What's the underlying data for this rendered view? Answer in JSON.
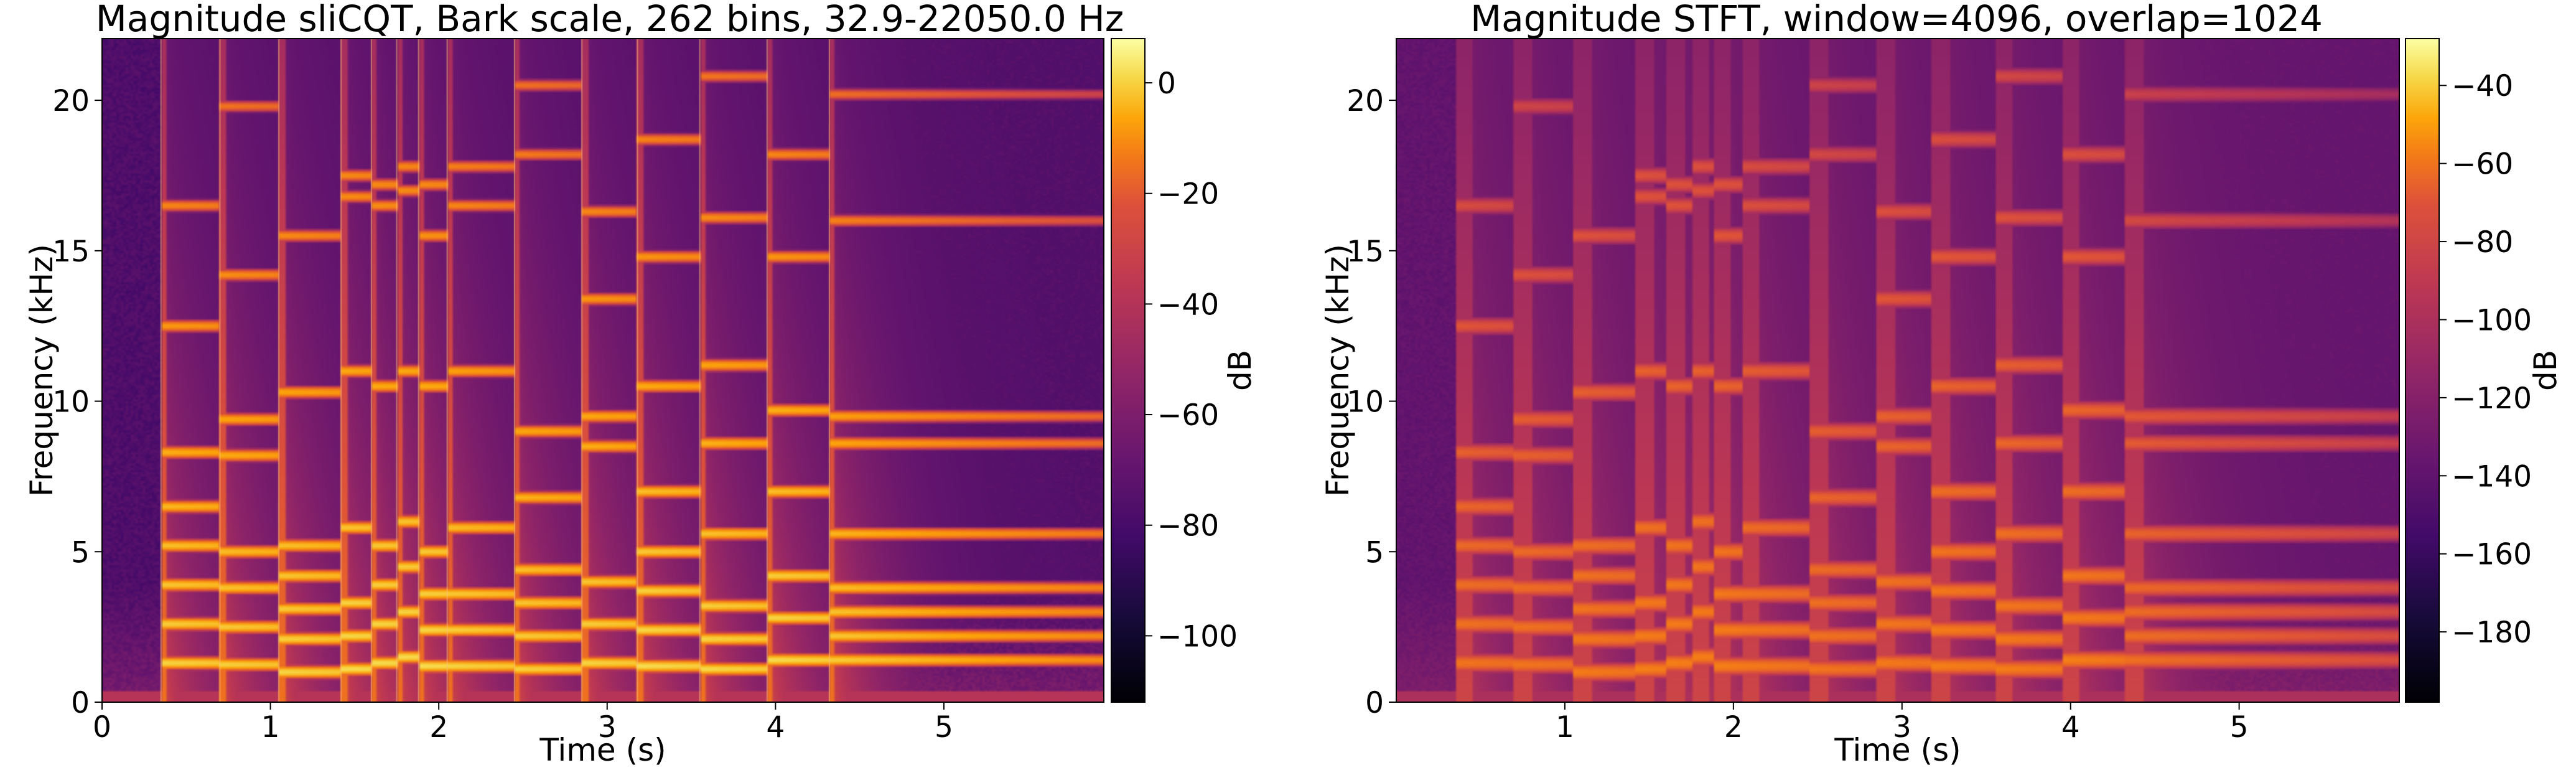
{
  "colormap": "inferno",
  "chart_data": [
    {
      "type": "heatmap",
      "title": "Magnitude sliCQT, Bark scale, 262 bins, 32.9-22050.0 Hz",
      "xlabel": "Time (s)",
      "ylabel": "Frequency (kHz)",
      "xlim": [
        0,
        5.95
      ],
      "ylim": [
        0,
        22.05
      ],
      "xticks": [
        {
          "value": 0,
          "label": "0"
        },
        {
          "value": 1,
          "label": "1"
        },
        {
          "value": 2,
          "label": "2"
        },
        {
          "value": 3,
          "label": "3"
        },
        {
          "value": 4,
          "label": "4"
        },
        {
          "value": 5,
          "label": "5"
        }
      ],
      "yticks": [
        {
          "value": 0,
          "label": "0"
        },
        {
          "value": 5,
          "label": "5"
        },
        {
          "value": 10,
          "label": "10"
        },
        {
          "value": 15,
          "label": "15"
        },
        {
          "value": 20,
          "label": "20"
        }
      ],
      "colorbar": {
        "label": "dB",
        "range": [
          -112,
          8
        ],
        "ticks": [
          {
            "value": 0,
            "label": "0"
          },
          {
            "value": -20,
            "label": "−20"
          },
          {
            "value": -40,
            "label": "−40"
          },
          {
            "value": -60,
            "label": "−60"
          },
          {
            "value": -80,
            "label": "−80"
          },
          {
            "value": -100,
            "label": "−100"
          }
        ]
      },
      "noise_floor_db": -84,
      "onset_segment_lines": true,
      "notes": [
        {
          "start": 0.35,
          "end": 0.7,
          "partials": [
            1.3,
            2.6,
            3.9,
            5.2,
            6.5,
            8.3,
            12.5,
            16.5
          ],
          "peak_db": -2
        },
        {
          "start": 0.7,
          "end": 1.05,
          "partials": [
            1.25,
            2.5,
            3.8,
            5.0,
            8.2,
            9.4,
            14.2,
            19.8
          ],
          "peak_db": -3
        },
        {
          "start": 1.05,
          "end": 1.42,
          "partials": [
            1.0,
            2.1,
            3.1,
            4.2,
            5.2,
            10.3,
            15.5
          ],
          "peak_db": -2
        },
        {
          "start": 1.42,
          "end": 1.6,
          "partials": [
            1.1,
            2.2,
            3.3,
            5.8,
            11.0,
            16.8,
            17.5
          ],
          "peak_db": 0
        },
        {
          "start": 1.6,
          "end": 1.75,
          "partials": [
            1.3,
            2.6,
            3.9,
            5.2,
            10.5,
            16.5,
            17.2
          ],
          "peak_db": 0
        },
        {
          "start": 1.75,
          "end": 1.88,
          "partials": [
            1.5,
            3.0,
            4.5,
            6.0,
            11.0,
            17.0,
            17.8
          ],
          "peak_db": 0
        },
        {
          "start": 1.88,
          "end": 2.05,
          "partials": [
            1.2,
            2.4,
            3.6,
            5.0,
            10.5,
            15.5,
            17.2
          ],
          "peak_db": 0
        },
        {
          "start": 2.05,
          "end": 2.45,
          "partials": [
            1.2,
            2.4,
            3.6,
            5.8,
            11.0,
            16.5,
            17.8
          ],
          "peak_db": -2
        },
        {
          "start": 2.45,
          "end": 2.85,
          "partials": [
            1.1,
            2.2,
            3.3,
            4.4,
            6.8,
            9.0,
            18.2,
            20.5
          ],
          "peak_db": -3
        },
        {
          "start": 2.85,
          "end": 3.18,
          "partials": [
            1.3,
            2.6,
            4.0,
            8.5,
            9.5,
            13.4,
            16.3
          ],
          "peak_db": -2
        },
        {
          "start": 3.18,
          "end": 3.55,
          "partials": [
            1.2,
            2.4,
            3.7,
            5.0,
            7.0,
            10.5,
            14.8,
            18.7
          ],
          "peak_db": 0
        },
        {
          "start": 3.55,
          "end": 3.95,
          "partials": [
            1.1,
            2.1,
            3.2,
            5.6,
            8.6,
            11.2,
            16.1,
            20.8
          ],
          "peak_db": -1
        },
        {
          "start": 3.95,
          "end": 4.32,
          "partials": [
            1.4,
            2.8,
            4.2,
            7.0,
            9.7,
            14.8,
            18.2
          ],
          "peak_db": 0
        },
        {
          "start": 4.32,
          "end": 5.95,
          "partials": [
            1.4,
            2.2,
            3.0,
            3.8,
            5.6,
            8.6,
            9.5,
            16.0,
            20.2
          ],
          "peak_db": -4
        }
      ]
    },
    {
      "type": "heatmap",
      "title": "Magnitude STFT, window=4096, overlap=1024",
      "xlabel": "Time (s)",
      "ylabel": "Frequency (kHz)",
      "xlim": [
        0,
        5.95
      ],
      "ylim": [
        0,
        22.05
      ],
      "xticks": [
        {
          "value": 1,
          "label": "1"
        },
        {
          "value": 2,
          "label": "2"
        },
        {
          "value": 3,
          "label": "3"
        },
        {
          "value": 4,
          "label": "4"
        },
        {
          "value": 5,
          "label": "5"
        }
      ],
      "yticks": [
        {
          "value": 0,
          "label": "0"
        },
        {
          "value": 5,
          "label": "5"
        },
        {
          "value": 10,
          "label": "10"
        },
        {
          "value": 15,
          "label": "15"
        },
        {
          "value": 20,
          "label": "20"
        }
      ],
      "colorbar": {
        "label": "dB",
        "range": [
          -198,
          -28
        ],
        "ticks": [
          {
            "value": -40,
            "label": "−40"
          },
          {
            "value": -60,
            "label": "−60"
          },
          {
            "value": -80,
            "label": "−80"
          },
          {
            "value": -100,
            "label": "−100"
          },
          {
            "value": -120,
            "label": "−120"
          },
          {
            "value": -140,
            "label": "−140"
          },
          {
            "value": -160,
            "label": "−160"
          },
          {
            "value": -180,
            "label": "−180"
          }
        ]
      },
      "noise_floor_db": -150,
      "onset_segment_lines": false,
      "notes": [
        {
          "start": 0.35,
          "end": 0.7,
          "partials": [
            1.3,
            2.6,
            3.9,
            5.2,
            6.5,
            8.3,
            12.5,
            16.5
          ],
          "peak_db": -78
        },
        {
          "start": 0.7,
          "end": 1.05,
          "partials": [
            1.25,
            2.5,
            3.8,
            5.0,
            8.2,
            9.4,
            14.2,
            19.8
          ],
          "peak_db": -78
        },
        {
          "start": 1.05,
          "end": 1.42,
          "partials": [
            1.0,
            2.1,
            3.1,
            4.2,
            5.2,
            10.3,
            15.5
          ],
          "peak_db": -76
        },
        {
          "start": 1.42,
          "end": 1.6,
          "partials": [
            1.1,
            2.2,
            3.3,
            5.8,
            11.0,
            16.8,
            17.5
          ],
          "peak_db": -74
        },
        {
          "start": 1.6,
          "end": 1.75,
          "partials": [
            1.3,
            2.6,
            3.9,
            5.2,
            10.5,
            16.5,
            17.2
          ],
          "peak_db": -74
        },
        {
          "start": 1.75,
          "end": 1.88,
          "partials": [
            1.5,
            3.0,
            4.5,
            6.0,
            11.0,
            17.0,
            17.8
          ],
          "peak_db": -74
        },
        {
          "start": 1.88,
          "end": 2.05,
          "partials": [
            1.2,
            2.4,
            3.6,
            5.0,
            10.5,
            15.5,
            17.2
          ],
          "peak_db": -74
        },
        {
          "start": 2.05,
          "end": 2.45,
          "partials": [
            1.2,
            2.4,
            3.6,
            5.8,
            11.0,
            16.5,
            17.8
          ],
          "peak_db": -76
        },
        {
          "start": 2.45,
          "end": 2.85,
          "partials": [
            1.1,
            2.2,
            3.3,
            4.4,
            6.8,
            9.0,
            18.2,
            20.5
          ],
          "peak_db": -78
        },
        {
          "start": 2.85,
          "end": 3.18,
          "partials": [
            1.3,
            2.6,
            4.0,
            8.5,
            9.5,
            13.4,
            16.3
          ],
          "peak_db": -76
        },
        {
          "start": 3.18,
          "end": 3.55,
          "partials": [
            1.2,
            2.4,
            3.7,
            5.0,
            7.0,
            10.5,
            14.8,
            18.7
          ],
          "peak_db": -74
        },
        {
          "start": 3.55,
          "end": 3.95,
          "partials": [
            1.1,
            2.1,
            3.2,
            5.6,
            8.6,
            11.2,
            16.1,
            20.8
          ],
          "peak_db": -75
        },
        {
          "start": 3.95,
          "end": 4.32,
          "partials": [
            1.4,
            2.8,
            4.2,
            7.0,
            9.7,
            14.8,
            18.2
          ],
          "peak_db": -74
        },
        {
          "start": 4.32,
          "end": 5.95,
          "partials": [
            1.4,
            2.2,
            3.0,
            3.8,
            5.6,
            8.6,
            9.5,
            16.0,
            20.2
          ],
          "peak_db": -80
        }
      ]
    }
  ]
}
